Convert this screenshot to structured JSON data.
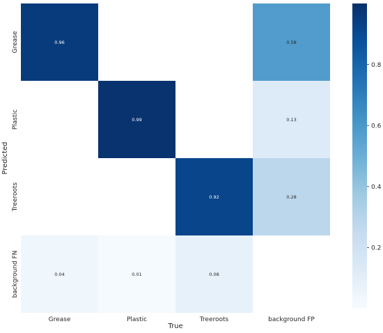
{
  "chart_data": {
    "type": "heatmap",
    "title": "",
    "xlabel": "True",
    "ylabel": "Predicted",
    "x_categories": [
      "Grease",
      "Plastic",
      "Treeroots",
      "background FP"
    ],
    "y_categories": [
      "Grease",
      "Plastic",
      "Treeroots",
      "background FN"
    ],
    "values": [
      [
        0.96,
        null,
        null,
        0.58
      ],
      [
        null,
        0.99,
        null,
        0.13
      ],
      [
        null,
        null,
        0.92,
        0.28
      ],
      [
        0.04,
        0.01,
        0.08,
        null
      ]
    ],
    "colormap": "Blues",
    "vmin": 0.0,
    "vmax": 1.0,
    "colorbar_ticks": [
      0.2,
      0.4,
      0.6,
      0.8
    ],
    "colorbar_tick_labels": [
      "0.2",
      "0.4",
      "0.6",
      "0.8"
    ],
    "grid": false
  }
}
